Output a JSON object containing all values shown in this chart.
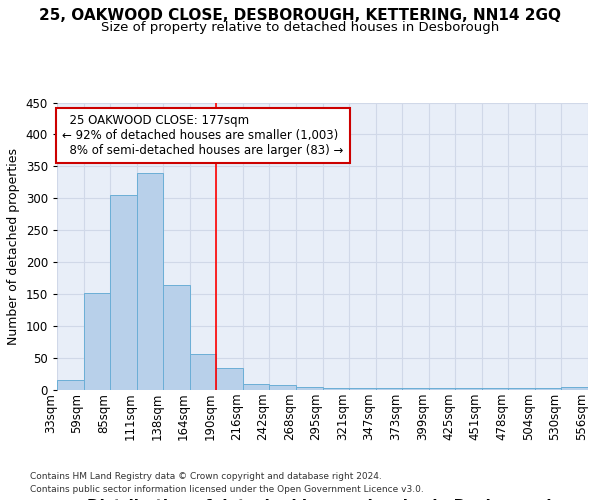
{
  "title": "25, OAKWOOD CLOSE, DESBOROUGH, KETTERING, NN14 2GQ",
  "subtitle": "Size of property relative to detached houses in Desborough",
  "xlabel": "Distribution of detached houses by size in Desborough",
  "ylabel": "Number of detached properties",
  "footer_line1": "Contains HM Land Registry data © Crown copyright and database right 2024.",
  "footer_line2": "Contains public sector information licensed under the Open Government Licence v3.0.",
  "bar_values": [
    15,
    152,
    305,
    340,
    165,
    57,
    35,
    10,
    8,
    5,
    3,
    3,
    3,
    3,
    3,
    3,
    3,
    3,
    3,
    5
  ],
  "x_labels": [
    "33sqm",
    "59sqm",
    "85sqm",
    "111sqm",
    "138sqm",
    "164sqm",
    "190sqm",
    "216sqm",
    "242sqm",
    "268sqm",
    "295sqm",
    "321sqm",
    "347sqm",
    "373sqm",
    "399sqm",
    "425sqm",
    "451sqm",
    "478sqm",
    "504sqm",
    "530sqm",
    "556sqm"
  ],
  "bar_color": "#b8d0ea",
  "bar_edge_color": "#6baed6",
  "bar_width": 1.0,
  "red_line_x": 5.5,
  "annotation_text": "  25 OAKWOOD CLOSE: 177sqm  \n← 92% of detached houses are smaller (1,003)\n  8% of semi-detached houses are larger (83) →",
  "annotation_box_color": "#ffffff",
  "annotation_box_edge_color": "#cc0000",
  "ylim": [
    0,
    450
  ],
  "yticks": [
    0,
    50,
    100,
    150,
    200,
    250,
    300,
    350,
    400,
    450
  ],
  "grid_color": "#d0d8e8",
  "bg_color": "#e8eef8",
  "title_fontsize": 11,
  "subtitle_fontsize": 9.5,
  "xlabel_fontsize": 11,
  "ylabel_fontsize": 9,
  "tick_fontsize": 8.5
}
